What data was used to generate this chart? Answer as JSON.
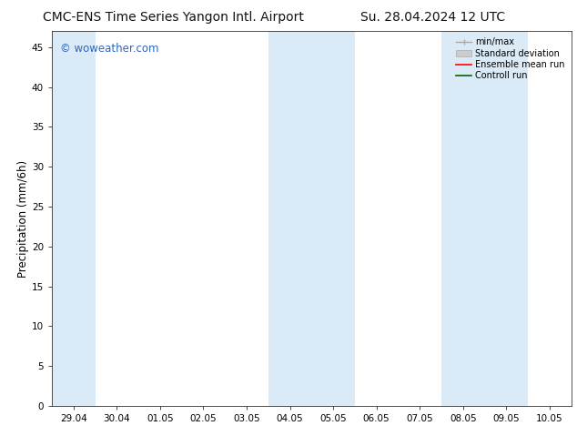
{
  "title_left": "CMC-ENS Time Series Yangon Intl. Airport",
  "title_right": "Su. 28.04.2024 12 UTC",
  "ylabel": "Precipitation (mm/6h)",
  "ylim": [
    0,
    47
  ],
  "yticks": [
    0,
    5,
    10,
    15,
    20,
    25,
    30,
    35,
    40,
    45
  ],
  "xtick_labels": [
    "29.04",
    "30.04",
    "01.05",
    "02.05",
    "03.05",
    "04.05",
    "05.05",
    "06.05",
    "07.05",
    "08.05",
    "09.05",
    "10.05"
  ],
  "shaded_regions": [
    {
      "xstart": 0,
      "xend": 1,
      "color": "#daeaf6"
    },
    {
      "xstart": 5,
      "xend": 7,
      "color": "#daeaf6"
    },
    {
      "xstart": 9,
      "xend": 11,
      "color": "#daeaf6"
    }
  ],
  "watermark": "© woweather.com",
  "watermark_color": "#3366bb",
  "background_color": "#ffffff",
  "plot_bg_color": "#ffffff",
  "title_fontsize": 10,
  "tick_fontsize": 7.5,
  "ylabel_fontsize": 8.5
}
